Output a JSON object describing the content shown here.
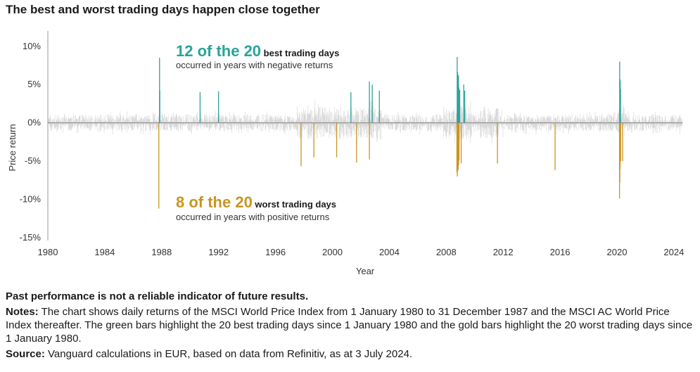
{
  "title": "The best and worst trading days happen close together",
  "footer": {
    "disclaimer": "Past performance is not a reliable indicator of future results.",
    "notes_label": "Notes:",
    "notes_text": " The chart shows daily returns of the MSCI World Price Index from 1 January 1980 to 31 December 1987 and the MSCI AC World Price Index thereafter. The green bars highlight the 20 best trading days since 1 January 1980 and the gold bars highlight the 20 worst trading days since 1 January 1980.",
    "source_label": "Source:",
    "source_text": " Vanguard calculations in EUR, based on data from Refinitiv, as at 3 July 2024."
  },
  "colors": {
    "best": "#2aa39b",
    "worst": "#c99520",
    "noise": "#d4d4d4",
    "zero_line": "#8c8c8c",
    "axis": "#999999"
  },
  "annotations": {
    "best": {
      "count": "12 of the 20",
      "label": " best trading days",
      "sub": "occurred in years with negative returns"
    },
    "worst": {
      "count": "8 of the 20",
      "label": " worst trading days",
      "sub": "occurred in years with positive returns"
    }
  },
  "chart_data": {
    "type": "bar",
    "xlabel": "Year",
    "ylabel": "Price return",
    "xlim": [
      1980,
      2024.6
    ],
    "ylim": [
      -15,
      12
    ],
    "x_ticks": [
      "1980",
      "1984",
      "1988",
      "1992",
      "1996",
      "2000",
      "2004",
      "2008",
      "2012",
      "2016",
      "2020",
      "2024"
    ],
    "y_ticks": [
      "10%",
      "5%",
      "0%",
      "-5%",
      "-10%",
      "-15%"
    ],
    "series": [
      {
        "name": "best trading days",
        "points": [
          {
            "x": 1987.85,
            "y": 8.5
          },
          {
            "x": 1987.87,
            "y": 4.2
          },
          {
            "x": 1990.7,
            "y": 4.0
          },
          {
            "x": 1992.0,
            "y": 4.1
          },
          {
            "x": 2001.3,
            "y": 4.0
          },
          {
            "x": 2002.6,
            "y": 5.4
          },
          {
            "x": 2002.8,
            "y": 5.0
          },
          {
            "x": 2003.3,
            "y": 4.2
          },
          {
            "x": 2008.77,
            "y": 8.6
          },
          {
            "x": 2008.8,
            "y": 6.6
          },
          {
            "x": 2008.83,
            "y": 5.9
          },
          {
            "x": 2008.86,
            "y": 6.2
          },
          {
            "x": 2008.89,
            "y": 4.6
          },
          {
            "x": 2008.95,
            "y": 4.3
          },
          {
            "x": 2009.23,
            "y": 5.0
          },
          {
            "x": 2009.3,
            "y": 4.2
          },
          {
            "x": 2020.19,
            "y": 8.0
          },
          {
            "x": 2020.21,
            "y": 5.7
          },
          {
            "x": 2020.23,
            "y": 5.5
          },
          {
            "x": 2020.25,
            "y": 4.4
          }
        ]
      },
      {
        "name": "worst trading days",
        "points": [
          {
            "x": 1987.8,
            "y": -11.2
          },
          {
            "x": 1997.8,
            "y": -5.7
          },
          {
            "x": 1998.7,
            "y": -4.5
          },
          {
            "x": 2000.3,
            "y": -4.5
          },
          {
            "x": 2001.7,
            "y": -5.2
          },
          {
            "x": 2002.6,
            "y": -4.8
          },
          {
            "x": 2008.75,
            "y": -6.5
          },
          {
            "x": 2008.78,
            "y": -7.0
          },
          {
            "x": 2008.81,
            "y": -5.8
          },
          {
            "x": 2008.84,
            "y": -6.2
          },
          {
            "x": 2008.87,
            "y": -5.5
          },
          {
            "x": 2008.9,
            "y": -4.9
          },
          {
            "x": 2009.05,
            "y": -5.3
          },
          {
            "x": 2011.6,
            "y": -5.3
          },
          {
            "x": 2015.65,
            "y": -6.2
          },
          {
            "x": 2020.18,
            "y": -9.9
          },
          {
            "x": 2020.2,
            "y": -7.8
          },
          {
            "x": 2020.22,
            "y": -6.0
          },
          {
            "x": 2020.26,
            "y": -5.0
          },
          {
            "x": 2020.4,
            "y": -5.0
          }
        ]
      }
    ]
  }
}
